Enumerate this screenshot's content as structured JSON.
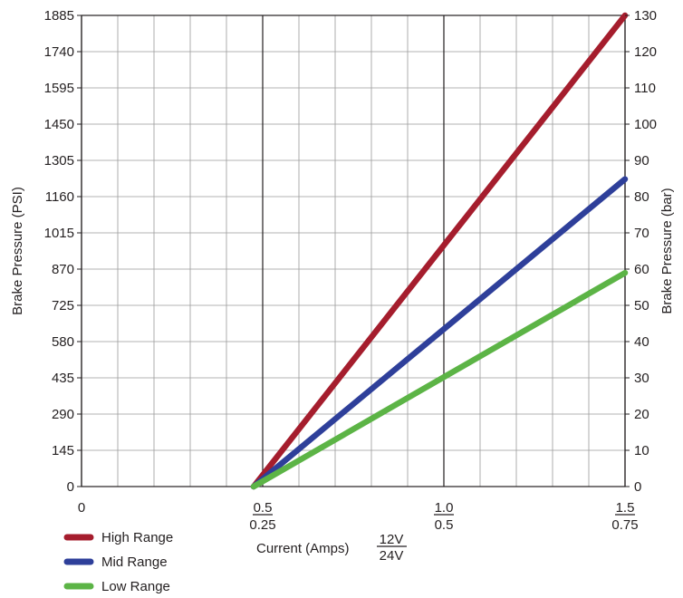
{
  "chart_data": {
    "type": "line",
    "xlabel": "Current (Amps)",
    "xlabel_fraction": {
      "top": "12V",
      "bottom": "24V"
    },
    "x_ticks": [
      {
        "value": 0,
        "top": "0",
        "bottom": ""
      },
      {
        "value": 0.5,
        "top": "0.5",
        "bottom": "0.25"
      },
      {
        "value": 1.0,
        "top": "1.0",
        "bottom": "0.5"
      },
      {
        "value": 1.5,
        "top": "1.5",
        "bottom": "0.75"
      }
    ],
    "xlim": [
      0,
      1.5
    ],
    "ylabel_left": "Brake Pressure (PSI)",
    "ylim_left": [
      0,
      1885
    ],
    "y_ticks_left": [
      "0",
      "145",
      "290",
      "435",
      "580",
      "725",
      "870",
      "1015",
      "1160",
      "1305",
      "1450",
      "1595",
      "1740",
      "1885"
    ],
    "ylabel_right": "Brake Pressure (bar)",
    "ylim_right": [
      0,
      130
    ],
    "y_ticks_right": [
      "0",
      "10",
      "20",
      "30",
      "40",
      "50",
      "60",
      "70",
      "80",
      "90",
      "100",
      "110",
      "120",
      "130"
    ],
    "grid": true,
    "legend_position": "bottom-left",
    "series": [
      {
        "name": "High Range",
        "color": "#a51d2d",
        "x": [
          0.475,
          1.5
        ],
        "y": [
          0,
          1885
        ]
      },
      {
        "name": "Mid Range",
        "color": "#2e3f9a",
        "x": [
          0.475,
          1.5
        ],
        "y": [
          0,
          1230
        ]
      },
      {
        "name": "Low Range",
        "color": "#5cb446",
        "x": [
          0.475,
          1.5
        ],
        "y": [
          0,
          855
        ]
      }
    ]
  }
}
